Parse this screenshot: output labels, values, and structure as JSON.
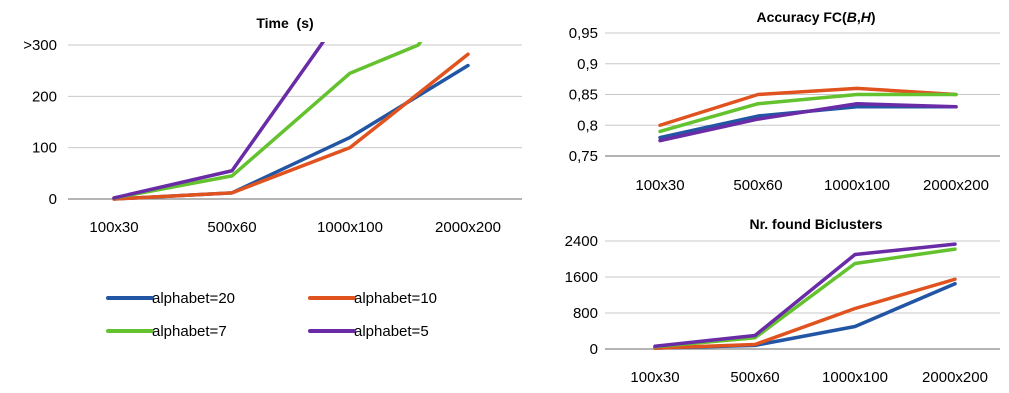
{
  "chart_data": [
    {
      "type": "line",
      "title": "Time  (s)",
      "categories": [
        "100x30",
        "500x60",
        "1000x100",
        "2000x200"
      ],
      "ylim": [
        0,
        300
      ],
      "yticks": [
        "0",
        "100",
        "200",
        ">300"
      ],
      "series": [
        {
          "name": "alphabet=20",
          "color": "#2255a4",
          "values": [
            0,
            12,
            120,
            260
          ]
        },
        {
          "name": "alphabet=10",
          "color": "#e0531f",
          "values": [
            0,
            12,
            100,
            282
          ]
        },
        {
          "name": "alphabet=7",
          "color": "#63c22e",
          "values": [
            2,
            45,
            245,
            300
          ]
        },
        {
          "name": "alphabet=5",
          "color": "#6a2ca6",
          "values": [
            2,
            55,
            300,
            300
          ]
        }
      ],
      "legend": "bottom"
    },
    {
      "type": "line",
      "title": "Accuracy FC(B,H)",
      "title_parts": {
        "prefix": "Accuracy FC(",
        "b": "B",
        "sep": ",",
        "h": "H",
        "suffix": ")"
      },
      "categories": [
        "100x30",
        "500x60",
        "1000x100",
        "2000x200"
      ],
      "ylim": [
        0.75,
        0.95
      ],
      "yticks": [
        "0,75",
        "0,8",
        "0,85",
        "0,9",
        "0,95"
      ],
      "series": [
        {
          "name": "alphabet=20",
          "color": "#2255a4",
          "values": [
            0.78,
            0.815,
            0.83,
            0.83
          ]
        },
        {
          "name": "alphabet=10",
          "color": "#e0531f",
          "values": [
            0.8,
            0.85,
            0.86,
            0.85
          ]
        },
        {
          "name": "alphabet=7",
          "color": "#63c22e",
          "values": [
            0.79,
            0.835,
            0.85,
            0.85
          ]
        },
        {
          "name": "alphabet=5",
          "color": "#6a2ca6",
          "values": [
            0.775,
            0.81,
            0.835,
            0.83
          ]
        }
      ]
    },
    {
      "type": "line",
      "title": "Nr. found Biclusters",
      "categories": [
        "100x30",
        "500x60",
        "1000x100",
        "2000x200"
      ],
      "ylim": [
        0,
        2400
      ],
      "yticks": [
        "0",
        "800",
        "1600",
        "2400"
      ],
      "series": [
        {
          "name": "alphabet=20",
          "color": "#2255a4",
          "values": [
            20,
            80,
            500,
            1450
          ]
        },
        {
          "name": "alphabet=10",
          "color": "#e0531f",
          "values": [
            20,
            100,
            900,
            1550
          ]
        },
        {
          "name": "alphabet=7",
          "color": "#63c22e",
          "values": [
            50,
            250,
            1900,
            2220
          ]
        },
        {
          "name": "alphabet=5",
          "color": "#6a2ca6",
          "values": [
            60,
            300,
            2100,
            2330
          ]
        }
      ]
    }
  ]
}
